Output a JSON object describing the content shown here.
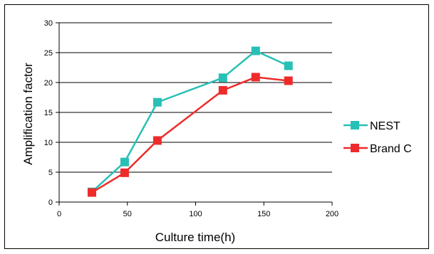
{
  "chart_data": {
    "type": "line",
    "title": "",
    "xlabel": "Culture time(h)",
    "ylabel": "Amplification factor",
    "xlim": [
      0,
      200
    ],
    "ylim": [
      0,
      30
    ],
    "xticks": [
      "0",
      "50",
      "100",
      "150",
      "200"
    ],
    "yticks": [
      "0",
      "5",
      "10",
      "15",
      "20",
      "25",
      "30"
    ],
    "grid": "horizontal",
    "legend_position": "right",
    "series": [
      {
        "name": "NEST",
        "color": "#27c0b6",
        "x": [
          24,
          48,
          72,
          120,
          144,
          168
        ],
        "y": [
          1.7,
          6.7,
          16.7,
          20.8,
          25.3,
          22.8
        ]
      },
      {
        "name": "Brand C",
        "color": "#ee2b2b",
        "x": [
          24,
          48,
          72,
          120,
          144,
          168
        ],
        "y": [
          1.6,
          4.9,
          10.3,
          18.7,
          20.9,
          20.3
        ]
      }
    ]
  }
}
